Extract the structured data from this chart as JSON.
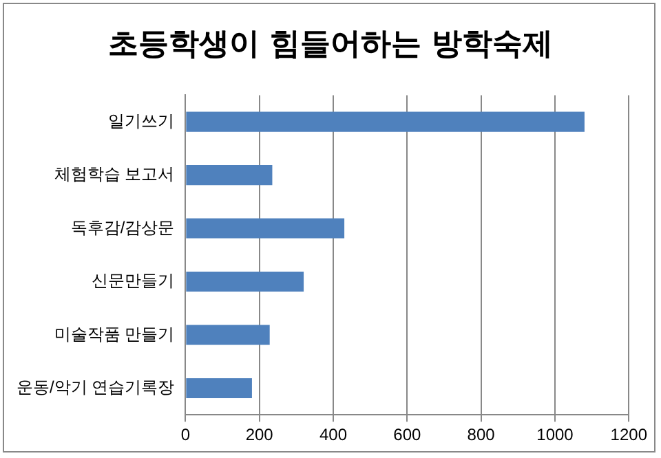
{
  "chart_data": {
    "type": "bar",
    "orientation": "horizontal",
    "title": "초등학생이 힘들어하는 방학숙제",
    "categories": [
      "일기쓰기",
      "체험학습 보고서",
      "독후감/감상문",
      "신문만들기",
      "미술작품 만들기",
      "운동/악기 연습기록장"
    ],
    "values": [
      1080,
      235,
      430,
      320,
      228,
      180
    ],
    "color": "#4f81bd",
    "xlim": [
      0,
      1200
    ],
    "xticks": [
      0,
      200,
      400,
      600,
      800,
      1000,
      1200
    ],
    "grid": "x",
    "legend": false
  }
}
